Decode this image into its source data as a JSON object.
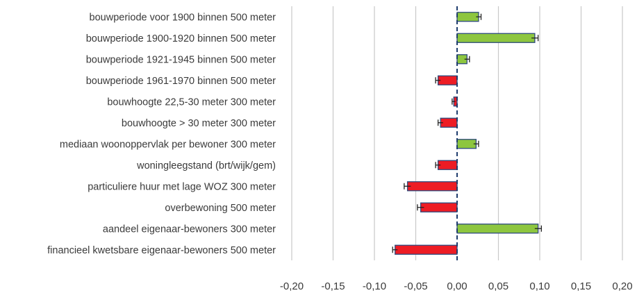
{
  "chart_data": {
    "type": "bar",
    "orientation": "horizontal",
    "title": "",
    "xlabel": "",
    "ylabel": "",
    "xlim": [
      -0.2,
      0.2
    ],
    "x_ticks": [
      -0.2,
      -0.15,
      -0.1,
      -0.05,
      0,
      0.05,
      0.1,
      0.15,
      0.2
    ],
    "x_tick_labels": [
      "-0,20",
      "-0,15",
      "-0,10",
      "-0,05",
      "0,00",
      "0,05",
      "0,10",
      "0,15",
      "0,20"
    ],
    "grid": true,
    "error_bars": true,
    "colors": {
      "positive": "#8dc63f",
      "negative": "#ed1c24",
      "bar_edge": "#2e4a7d",
      "zero_line": "#1f3d6e",
      "grid": "#c8c8c8",
      "text": "#3a3a3a"
    },
    "categories": [
      "bouwperiode voor 1900 binnen 500 meter",
      "bouwperiode 1900-1920 binnen 500 meter",
      "bouwperiode 1921-1945 binnen 500 meter",
      "bouwperiode 1961-1970 binnen 500 meter",
      "bouwhoogte 22,5-30 meter  300 meter",
      "bouwhoogte > 30 meter 300 meter",
      "mediaan woonoppervlak per bewoner 300 meter",
      "woningleegstand (brt/wijk/gem)",
      "particuliere huur met lage WOZ 300 meter",
      "overbewoning 500 meter",
      "aandeel eigenaar-bewoners 300 meter",
      "financieel kwetsbare eigenaar-bewoners  500 meter"
    ],
    "values": [
      0.026,
      0.094,
      0.012,
      -0.023,
      -0.004,
      -0.02,
      0.023,
      -0.023,
      -0.06,
      -0.044,
      0.098,
      -0.075
    ],
    "errors": [
      0.003,
      0.004,
      0.003,
      0.003,
      0.002,
      0.003,
      0.003,
      0.003,
      0.004,
      0.004,
      0.004,
      0.003
    ]
  }
}
